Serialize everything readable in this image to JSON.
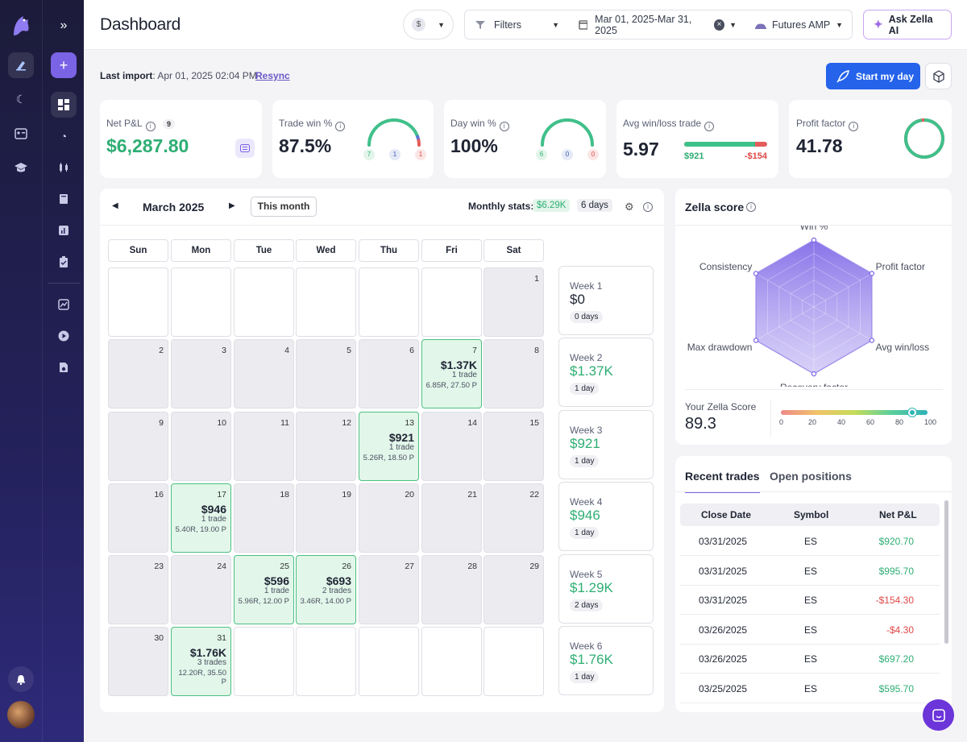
{
  "header": {
    "title": "Dashboard",
    "filters_label": "Filters",
    "date_range": "Mar 01, 2025-Mar 31, 2025",
    "account": "Futures AMP",
    "ask_ai": "Ask Zella AI",
    "currency_symbol": "$"
  },
  "import": {
    "label": "Last import",
    "value": ": Apr 01, 2025 02:04 PM",
    "resync": "Resync",
    "start_day": "Start my day"
  },
  "stats": {
    "net_pnl": {
      "label": "Net P&L",
      "badge": "9",
      "value": "$6,287.80"
    },
    "trade_win": {
      "label": "Trade win %",
      "value": "87.5%",
      "win": "7",
      "neutral": "1",
      "loss": "1",
      "fraction": 0.875
    },
    "day_win": {
      "label": "Day win %",
      "value": "100%",
      "win": "6",
      "neutral": "0",
      "loss": "0",
      "fraction": 1.0
    },
    "avg_winloss": {
      "label": "Avg win/loss trade",
      "value": "5.97",
      "avg_win": "$921",
      "avg_loss": "-$154",
      "win_fraction": 0.857
    },
    "profit_factor": {
      "label": "Profit factor",
      "value": "41.78",
      "fraction": 0.976
    }
  },
  "calendar": {
    "month": "March 2025",
    "this_month": "This month",
    "monthly_stats_label": "Monthly stats:",
    "monthly_amount": "$6.29K",
    "monthly_days": "6 days",
    "days_header": [
      "Sun",
      "Mon",
      "Tue",
      "Wed",
      "Thu",
      "Fri",
      "Sat"
    ],
    "days": [
      {
        "d": "",
        "g": false
      },
      {
        "d": "",
        "g": false
      },
      {
        "d": "",
        "g": false
      },
      {
        "d": "",
        "g": false
      },
      {
        "d": "",
        "g": false
      },
      {
        "d": "",
        "g": false
      },
      {
        "d": "1",
        "g": true
      },
      {
        "d": "2",
        "g": true
      },
      {
        "d": "3",
        "g": true
      },
      {
        "d": "4",
        "g": true
      },
      {
        "d": "5",
        "g": true
      },
      {
        "d": "6",
        "g": true
      },
      {
        "d": "7",
        "w": true,
        "amt": "$1.37K",
        "tr": "1 trade",
        "rr": "6.85R, 27.50 P"
      },
      {
        "d": "8",
        "g": true
      },
      {
        "d": "9",
        "g": true
      },
      {
        "d": "10",
        "g": true
      },
      {
        "d": "11",
        "g": true
      },
      {
        "d": "12",
        "g": true
      },
      {
        "d": "13",
        "w": true,
        "amt": "$921",
        "tr": "1 trade",
        "rr": "5.26R, 18.50 P"
      },
      {
        "d": "14",
        "g": true
      },
      {
        "d": "15",
        "g": true
      },
      {
        "d": "16",
        "g": true
      },
      {
        "d": "17",
        "w": true,
        "amt": "$946",
        "tr": "1 trade",
        "rr": "5.40R, 19.00 P"
      },
      {
        "d": "18",
        "g": true
      },
      {
        "d": "19",
        "g": true
      },
      {
        "d": "20",
        "g": true
      },
      {
        "d": "21",
        "g": true
      },
      {
        "d": "22",
        "g": true
      },
      {
        "d": "23",
        "g": true
      },
      {
        "d": "24",
        "g": true
      },
      {
        "d": "25",
        "w": true,
        "amt": "$596",
        "tr": "1 trade",
        "rr": "5.96R, 12.00 P"
      },
      {
        "d": "26",
        "w": true,
        "amt": "$693",
        "tr": "2 trades",
        "rr": "3.46R, 14.00 P"
      },
      {
        "d": "27",
        "g": true
      },
      {
        "d": "28",
        "g": true
      },
      {
        "d": "29",
        "g": true
      },
      {
        "d": "30",
        "g": true
      },
      {
        "d": "31",
        "w": true,
        "amt": "$1.76K",
        "tr": "3 trades",
        "rr": "12.20R, 35.50 P"
      },
      {
        "d": "",
        "g": false
      },
      {
        "d": "",
        "g": false
      },
      {
        "d": "",
        "g": false
      },
      {
        "d": "",
        "g": false
      },
      {
        "d": "",
        "g": false
      }
    ],
    "weeks": [
      {
        "name": "Week 1",
        "value": "$0",
        "days": "0 days",
        "pos": false
      },
      {
        "name": "Week 2",
        "value": "$1.37K",
        "days": "1 day",
        "pos": true
      },
      {
        "name": "Week 3",
        "value": "$921",
        "days": "1 day",
        "pos": true
      },
      {
        "name": "Week 4",
        "value": "$946",
        "days": "1 day",
        "pos": true
      },
      {
        "name": "Week 5",
        "value": "$1.29K",
        "days": "2 days",
        "pos": true
      },
      {
        "name": "Week 6",
        "value": "$1.76K",
        "days": "1 day",
        "pos": true
      }
    ]
  },
  "zella": {
    "title": "Zella score",
    "axes": [
      "Win %",
      "Profit factor",
      "Avg win/loss",
      "Recovery factor",
      "Max drawdown",
      "Consistency"
    ],
    "values": [
      1.0,
      1.0,
      1.0,
      1.0,
      1.0,
      1.0
    ],
    "score_label": "Your Zella Score",
    "score": "89.3",
    "score_value": 89.3,
    "ticks": [
      "0",
      "20",
      "40",
      "60",
      "80",
      "100"
    ]
  },
  "trades": {
    "tabs": [
      "Recent trades",
      "Open positions"
    ],
    "columns": [
      "Close Date",
      "Symbol",
      "Net P&L"
    ],
    "rows": [
      {
        "date": "03/31/2025",
        "symbol": "ES",
        "pnl": "$920.70",
        "pos": true
      },
      {
        "date": "03/31/2025",
        "symbol": "ES",
        "pnl": "$995.70",
        "pos": true
      },
      {
        "date": "03/31/2025",
        "symbol": "ES",
        "pnl": "-$154.30",
        "pos": false
      },
      {
        "date": "03/26/2025",
        "symbol": "ES",
        "pnl": "-$4.30",
        "pos": false
      },
      {
        "date": "03/26/2025",
        "symbol": "ES",
        "pnl": "$697.20",
        "pos": true
      },
      {
        "date": "03/25/2025",
        "symbol": "ES",
        "pnl": "$595.70",
        "pos": true
      }
    ]
  }
}
